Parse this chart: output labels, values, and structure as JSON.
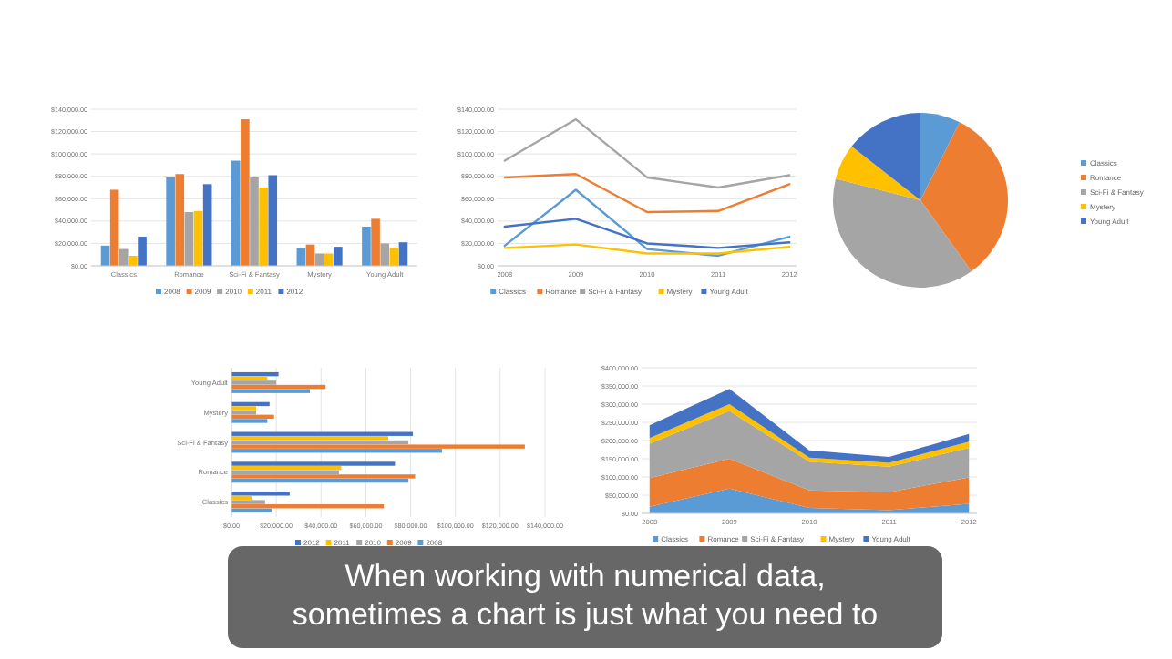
{
  "chart_data": [
    {
      "type": "bar",
      "categories": [
        "Classics",
        "Romance",
        "Sci-Fi & Fantasy",
        "Mystery",
        "Young Adult"
      ],
      "series": [
        {
          "name": "2008",
          "color": "#5b9bd5",
          "values": [
            18000,
            79000,
            94000,
            16000,
            35000
          ]
        },
        {
          "name": "2009",
          "color": "#ed7d31",
          "values": [
            68000,
            82000,
            131000,
            19000,
            42000
          ]
        },
        {
          "name": "2010",
          "color": "#a5a5a5",
          "values": [
            15000,
            48000,
            79000,
            11000,
            20000
          ]
        },
        {
          "name": "2011",
          "color": "#ffc000",
          "values": [
            9000,
            49000,
            70000,
            11000,
            16000
          ]
        },
        {
          "name": "2012",
          "color": "#4472c4",
          "values": [
            26000,
            73000,
            81000,
            17000,
            21000
          ]
        }
      ],
      "ylim": [
        0,
        140000
      ],
      "yticks": [
        {
          "value": 0,
          "label": "$0.00"
        },
        {
          "value": 20000,
          "label": "$20,000.00"
        },
        {
          "value": 40000,
          "label": "$40,000.00"
        },
        {
          "value": 60000,
          "label": "$60,000.00"
        },
        {
          "value": 80000,
          "label": "$80,000.00"
        },
        {
          "value": 100000,
          "label": "$100,000.00"
        },
        {
          "value": 120000,
          "label": "$120,000.00"
        },
        {
          "value": 140000,
          "label": "$140,000.00"
        }
      ],
      "grid": "y",
      "legend": "bottom"
    },
    {
      "type": "line",
      "categories": [
        "2008",
        "2009",
        "2010",
        "2011",
        "2012"
      ],
      "series": [
        {
          "name": "Classics",
          "color": "#5b9bd5",
          "values": [
            18000,
            68000,
            15000,
            9000,
            26000
          ]
        },
        {
          "name": "Romance",
          "color": "#ed7d31",
          "values": [
            79000,
            82000,
            48000,
            49000,
            73000
          ]
        },
        {
          "name": "Sci-Fi & Fantasy",
          "color": "#a5a5a5",
          "values": [
            94000,
            131000,
            79000,
            70000,
            81000
          ]
        },
        {
          "name": "Mystery",
          "color": "#ffc000",
          "values": [
            16000,
            19000,
            11000,
            11000,
            17000
          ]
        },
        {
          "name": "Young Adult",
          "color": "#4472c4",
          "values": [
            35000,
            42000,
            20000,
            16000,
            21000
          ]
        }
      ],
      "ylim": [
        0,
        140000
      ],
      "yticks": [
        {
          "value": 0,
          "label": "$0.00"
        },
        {
          "value": 20000,
          "label": "$20,000.00"
        },
        {
          "value": 40000,
          "label": "$40,000.00"
        },
        {
          "value": 60000,
          "label": "$60,000.00"
        },
        {
          "value": 80000,
          "label": "$80,000.00"
        },
        {
          "value": 100000,
          "label": "$100,000.00"
        },
        {
          "value": 120000,
          "label": "$120,000.00"
        },
        {
          "value": 140000,
          "label": "$140,000.00"
        }
      ],
      "grid": "y",
      "legend": "bottom",
      "marker": "none",
      "line_style": "solid"
    },
    {
      "type": "pie",
      "categories": [
        "Classics",
        "Romance",
        "Sci-Fi & Fantasy",
        "Mystery",
        "Young Adult"
      ],
      "values": [
        7.4,
        32.7,
        38.9,
        6.6,
        14.4
      ],
      "colors": [
        "#5b9bd5",
        "#ed7d31",
        "#a5a5a5",
        "#ffc000",
        "#4472c4"
      ],
      "legend": "right"
    },
    {
      "type": "bar",
      "orientation": "horizontal",
      "categories": [
        "Young Adult",
        "Mystery",
        "Sci-Fi & Fantasy",
        "Romance",
        "Classics"
      ],
      "series": [
        {
          "name": "2012",
          "color": "#4472c4",
          "values": [
            21000,
            17000,
            81000,
            73000,
            26000
          ]
        },
        {
          "name": "2011",
          "color": "#ffc000",
          "values": [
            16000,
            11000,
            70000,
            49000,
            9000
          ]
        },
        {
          "name": "2010",
          "color": "#a5a5a5",
          "values": [
            20000,
            11000,
            79000,
            48000,
            15000
          ]
        },
        {
          "name": "2009",
          "color": "#ed7d31",
          "values": [
            42000,
            19000,
            131000,
            82000,
            68000
          ]
        },
        {
          "name": "2008",
          "color": "#5b9bd5",
          "values": [
            35000,
            16000,
            94000,
            79000,
            18000
          ]
        }
      ],
      "xlim": [
        0,
        140000
      ],
      "xticks": [
        {
          "value": 0,
          "label": "$0.00"
        },
        {
          "value": 20000,
          "label": "$20,000.00"
        },
        {
          "value": 40000,
          "label": "$40,000.00"
        },
        {
          "value": 60000,
          "label": "$60,000.00"
        },
        {
          "value": 80000,
          "label": "$80,000.00"
        },
        {
          "value": 100000,
          "label": "$100,000.00"
        },
        {
          "value": 120000,
          "label": "$120,000.00"
        },
        {
          "value": 140000,
          "label": "$140,000.00"
        }
      ],
      "grid": "x",
      "legend": "bottom"
    },
    {
      "type": "area",
      "stacked": true,
      "categories": [
        "2008",
        "2009",
        "2010",
        "2011",
        "2012"
      ],
      "series": [
        {
          "name": "Classics",
          "color": "#5b9bd5",
          "values": [
            18000,
            68000,
            15000,
            9000,
            26000
          ]
        },
        {
          "name": "Romance",
          "color": "#ed7d31",
          "values": [
            79000,
            82000,
            48000,
            49000,
            73000
          ]
        },
        {
          "name": "Sci-Fi & Fantasy",
          "color": "#a5a5a5",
          "values": [
            94000,
            131000,
            79000,
            70000,
            81000
          ]
        },
        {
          "name": "Mystery",
          "color": "#ffc000",
          "values": [
            16000,
            19000,
            11000,
            11000,
            17000
          ]
        },
        {
          "name": "Young Adult",
          "color": "#4472c4",
          "values": [
            35000,
            42000,
            20000,
            16000,
            21000
          ]
        }
      ],
      "ylim": [
        0,
        400000
      ],
      "yticks": [
        {
          "value": 0,
          "label": "$0.00"
        },
        {
          "value": 50000,
          "label": "$50,000.00"
        },
        {
          "value": 100000,
          "label": "$100,000.00"
        },
        {
          "value": 150000,
          "label": "$150,000.00"
        },
        {
          "value": 200000,
          "label": "$200,000.00"
        },
        {
          "value": 250000,
          "label": "$250,000.00"
        },
        {
          "value": 300000,
          "label": "$300,000.00"
        },
        {
          "value": 350000,
          "label": "$350,000.00"
        },
        {
          "value": 400000,
          "label": "$400,000.00"
        }
      ],
      "grid": "y",
      "legend": "bottom"
    },
    {
      "type": "other",
      "annotations": [
        "When working with numerical data,",
        "sometimes a chart is just what you need to"
      ]
    }
  ]
}
